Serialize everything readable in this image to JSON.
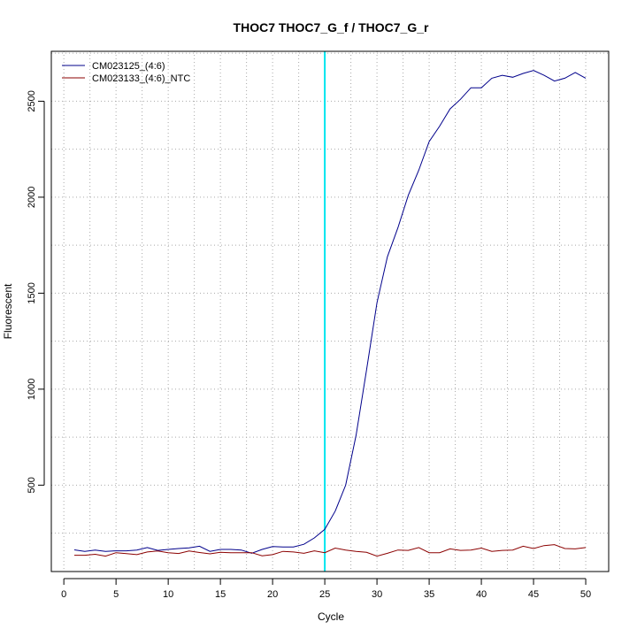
{
  "chart_data": {
    "type": "line",
    "title": "THOC7  THOC7_G_f / THOC7_G_r",
    "xlabel": "Cycle",
    "ylabel": "Fluorescent",
    "xlim": [
      -1.2,
      52.2
    ],
    "ylim": [
      50,
      2760
    ],
    "x_ticks": [
      0,
      5,
      10,
      15,
      20,
      25,
      30,
      35,
      40,
      45,
      50
    ],
    "y_ticks": [
      500,
      1000,
      1500,
      2000,
      2500
    ],
    "grid": true,
    "threshold_cycle": 25,
    "threshold_color": "#00e5ee",
    "legend_position": "top-left",
    "x": [
      1,
      2,
      3,
      4,
      5,
      6,
      7,
      8,
      9,
      10,
      11,
      12,
      13,
      14,
      15,
      16,
      17,
      18,
      19,
      20,
      21,
      22,
      23,
      24,
      25,
      26,
      27,
      28,
      29,
      30,
      31,
      32,
      33,
      34,
      35,
      36,
      37,
      38,
      39,
      40,
      41,
      42,
      43,
      44,
      45,
      46,
      47,
      48,
      49,
      50
    ],
    "series": [
      {
        "name": "CM023125_(4:6)",
        "color": "#00008b",
        "values": [
          163,
          155,
          162,
          155,
          158,
          158,
          162,
          175,
          160,
          165,
          170,
          173,
          182,
          155,
          165,
          165,
          162,
          145,
          165,
          180,
          178,
          178,
          192,
          225,
          270,
          365,
          500,
          760,
          1100,
          1450,
          1690,
          1840,
          2010,
          2140,
          2290,
          2370,
          2460,
          2510,
          2570,
          2570,
          2620,
          2635,
          2625,
          2645,
          2660,
          2635,
          2605,
          2620,
          2650,
          2620
        ]
      },
      {
        "name": "CM023133_(4:6)_NTC",
        "color": "#8b0000",
        "values": [
          135,
          135,
          140,
          130,
          148,
          143,
          138,
          152,
          157,
          148,
          144,
          157,
          149,
          142,
          150,
          148,
          148,
          148,
          132,
          138,
          155,
          152,
          145,
          158,
          148,
          172,
          162,
          155,
          150,
          130,
          145,
          162,
          160,
          175,
          148,
          148,
          168,
          160,
          162,
          172,
          155,
          160,
          162,
          182,
          170,
          185,
          190,
          170,
          168,
          175
        ]
      }
    ]
  }
}
